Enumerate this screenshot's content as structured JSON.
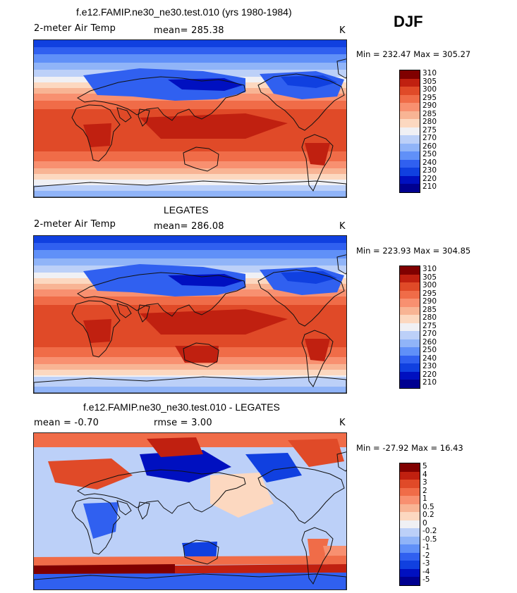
{
  "season": "DJF",
  "units_label": "K",
  "colors": {
    "abs_scale": [
      "#000090",
      "#0010c0",
      "#1040e0",
      "#3060f0",
      "#6090f8",
      "#90b4f8",
      "#bcd0f8",
      "#f0f0f4",
      "#fcd8c0",
      "#f8b494",
      "#f89070",
      "#f06c48",
      "#e04a28",
      "#c02010",
      "#800000"
    ],
    "diff_scale": [
      "#000090",
      "#0010c0",
      "#1040e0",
      "#3060f0",
      "#6090f8",
      "#90b4f8",
      "#bcd0f8",
      "#f0f0f4",
      "#fcd8c0",
      "#f8b494",
      "#f89070",
      "#f06c48",
      "#e04a28",
      "#c02010",
      "#800000"
    ]
  },
  "panels": [
    {
      "id": "model",
      "title": "f.e12.FAMIP.ne30_ne30.test.010 (yrs 1980-1984)",
      "left_label": "2-meter Air Temp",
      "mean_label": "mean= 285.38",
      "rmse_label": "",
      "unit": "K",
      "minmax": "Min = 232.47 Max = 305.27",
      "colorbar_ticks": [
        "310",
        "305",
        "300",
        "295",
        "290",
        "285",
        "280",
        "275",
        "270",
        "260",
        "250",
        "240",
        "230",
        "220",
        "210"
      ]
    },
    {
      "id": "obs",
      "title": "LEGATES",
      "left_label": "2-meter Air Temp",
      "mean_label": "mean= 286.08",
      "rmse_label": "",
      "unit": "K",
      "minmax": "Min = 223.93 Max = 304.85",
      "colorbar_ticks": [
        "310",
        "305",
        "300",
        "295",
        "290",
        "285",
        "280",
        "275",
        "270",
        "260",
        "250",
        "240",
        "230",
        "220",
        "210"
      ]
    },
    {
      "id": "diff",
      "title": "f.e12.FAMIP.ne30_ne30.test.010 - LEGATES",
      "left_label": "mean =   -0.70",
      "mean_label": "rmse =    3.00",
      "rmse_label": "",
      "unit": "K",
      "minmax": "Min = -27.92 Max =  16.43",
      "colorbar_ticks": [
        "5",
        "4",
        "3",
        "2",
        "1",
        "0.5",
        "0.2",
        "0",
        "-0.2",
        "-0.5",
        "-1",
        "-2",
        "-3",
        "-4",
        "-5"
      ]
    }
  ],
  "chart_data": [
    {
      "type": "heatmap",
      "title": "f.e12.FAMIP.ne30_ne30.test.010 (yrs 1980-1984)",
      "variable": "2-meter Air Temp",
      "units": "K",
      "mean": 285.38,
      "min": 232.47,
      "max": 305.27,
      "contour_levels": [
        210,
        220,
        230,
        240,
        250,
        260,
        270,
        275,
        280,
        285,
        290,
        295,
        300,
        305,
        310
      ]
    },
    {
      "type": "heatmap",
      "title": "LEGATES",
      "variable": "2-meter Air Temp",
      "units": "K",
      "mean": 286.08,
      "min": 223.93,
      "max": 304.85,
      "contour_levels": [
        210,
        220,
        230,
        240,
        250,
        260,
        270,
        275,
        280,
        285,
        290,
        295,
        300,
        305,
        310
      ]
    },
    {
      "type": "heatmap",
      "title": "f.e12.FAMIP.ne30_ne30.test.010 - LEGATES",
      "units": "K",
      "mean": -0.7,
      "rmse": 3.0,
      "min": -27.92,
      "max": 16.43,
      "contour_levels": [
        -5,
        -4,
        -3,
        -2,
        -1,
        -0.5,
        -0.2,
        0,
        0.2,
        0.5,
        1,
        2,
        3,
        4,
        5
      ]
    }
  ]
}
